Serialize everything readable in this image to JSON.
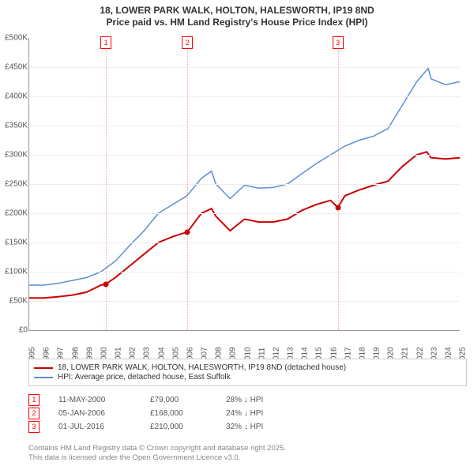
{
  "title_line1": "18, LOWER PARK WALK, HOLTON, HALESWORTH, IP19 8ND",
  "title_line2": "Price paid vs. HM Land Registry's House Price Index (HPI)",
  "chart": {
    "type": "line",
    "x_start_year": 1995,
    "x_end_year": 2025,
    "x_ticks": [
      1995,
      1996,
      1997,
      1998,
      1999,
      2000,
      2001,
      2002,
      2003,
      2004,
      2005,
      2006,
      2007,
      2008,
      2009,
      2010,
      2011,
      2012,
      2013,
      2014,
      2015,
      2016,
      2017,
      2018,
      2019,
      2020,
      2021,
      2022,
      2023,
      2024,
      2025
    ],
    "y_min": 0,
    "y_max": 500,
    "y_ticks": [
      0,
      50,
      100,
      150,
      200,
      250,
      300,
      350,
      400,
      450,
      500
    ],
    "y_tick_labels": [
      "£0",
      "£50K",
      "£100K",
      "£150K",
      "£200K",
      "£250K",
      "£300K",
      "£350K",
      "£400K",
      "£450K",
      "£500K"
    ],
    "grid_color": "#eeeeee",
    "background_color": "#ffffff",
    "series": [
      {
        "name": "18, LOWER PARK WALK, HOLTON, HALESWORTH, IP19 8ND (detached house)",
        "color": "#cc0000",
        "width": 2,
        "points": [
          [
            1995,
            55
          ],
          [
            1996,
            55
          ],
          [
            1997,
            57
          ],
          [
            1998,
            60
          ],
          [
            1999,
            65
          ],
          [
            2000,
            77
          ],
          [
            2000.35,
            79
          ],
          [
            2001,
            90
          ],
          [
            2002,
            110
          ],
          [
            2003,
            130
          ],
          [
            2004,
            150
          ],
          [
            2005,
            160
          ],
          [
            2006.02,
            168
          ],
          [
            2007,
            200
          ],
          [
            2007.7,
            208
          ],
          [
            2008,
            195
          ],
          [
            2009,
            170
          ],
          [
            2010,
            190
          ],
          [
            2011,
            185
          ],
          [
            2012,
            185
          ],
          [
            2013,
            190
          ],
          [
            2014,
            205
          ],
          [
            2015,
            215
          ],
          [
            2016,
            222
          ],
          [
            2016.5,
            210
          ],
          [
            2017,
            230
          ],
          [
            2018,
            240
          ],
          [
            2019,
            248
          ],
          [
            2020,
            255
          ],
          [
            2021,
            280
          ],
          [
            2022,
            300
          ],
          [
            2022.7,
            305
          ],
          [
            2023,
            295
          ],
          [
            2024,
            293
          ],
          [
            2025,
            295
          ]
        ]
      },
      {
        "name": "HPI: Average price, detached house, East Suffolk",
        "color": "#5b8fd6",
        "width": 1.5,
        "points": [
          [
            1995,
            77
          ],
          [
            1996,
            77
          ],
          [
            1997,
            80
          ],
          [
            1998,
            85
          ],
          [
            1999,
            90
          ],
          [
            2000,
            100
          ],
          [
            2001,
            118
          ],
          [
            2002,
            145
          ],
          [
            2003,
            170
          ],
          [
            2004,
            200
          ],
          [
            2005,
            215
          ],
          [
            2006,
            230
          ],
          [
            2007,
            260
          ],
          [
            2007.7,
            272
          ],
          [
            2008,
            250
          ],
          [
            2009,
            225
          ],
          [
            2010,
            248
          ],
          [
            2011,
            243
          ],
          [
            2012,
            244
          ],
          [
            2013,
            250
          ],
          [
            2014,
            268
          ],
          [
            2015,
            285
          ],
          [
            2016,
            300
          ],
          [
            2017,
            315
          ],
          [
            2018,
            325
          ],
          [
            2019,
            332
          ],
          [
            2020,
            345
          ],
          [
            2021,
            385
          ],
          [
            2022,
            425
          ],
          [
            2022.8,
            448
          ],
          [
            2023,
            430
          ],
          [
            2024,
            420
          ],
          [
            2025,
            425
          ]
        ]
      }
    ],
    "markers": [
      {
        "num": "1",
        "year": 2000.35,
        "price": 79
      },
      {
        "num": "2",
        "year": 2006.02,
        "price": 168
      },
      {
        "num": "3",
        "year": 2016.5,
        "price": 210
      }
    ]
  },
  "legend": [
    {
      "color": "#cc0000",
      "label": "18, LOWER PARK WALK, HOLTON, HALESWORTH, IP19 8ND (detached house)"
    },
    {
      "color": "#5b8fd6",
      "label": "HPI: Average price, detached house, East Suffolk"
    }
  ],
  "sales": [
    {
      "num": "1",
      "date": "11-MAY-2000",
      "price": "£79,000",
      "diff": "28% ↓ HPI"
    },
    {
      "num": "2",
      "date": "05-JAN-2006",
      "price": "£168,000",
      "diff": "24% ↓ HPI"
    },
    {
      "num": "3",
      "date": "01-JUL-2016",
      "price": "£210,000",
      "diff": "32% ↓ HPI"
    }
  ],
  "footer_line1": "Contains HM Land Registry data © Crown copyright and database right 2025.",
  "footer_line2": "This data is licensed under the Open Government Licence v3.0."
}
